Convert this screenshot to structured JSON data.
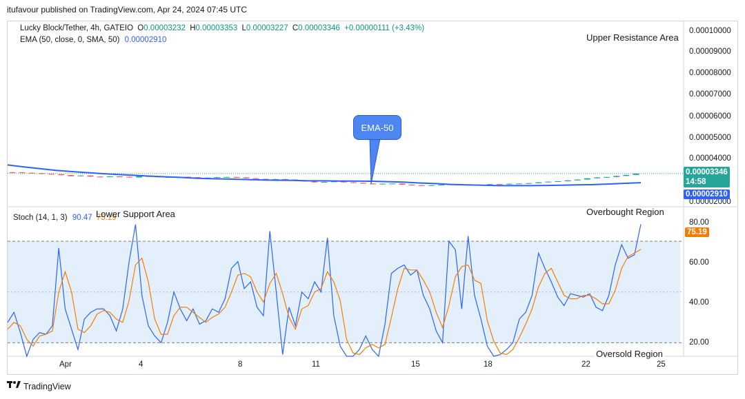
{
  "header": {
    "publisher_line": "itufavour published on TradingView.com, Apr 24, 2024 07:45 UTC"
  },
  "legend": {
    "symbol": "Lucky Block/Tether, 4h, GATEIO",
    "o_label": "O",
    "o_value": "0.00003232",
    "h_label": "H",
    "h_value": "0.00003353",
    "l_label": "L",
    "l_value": "0.00003227",
    "c_label": "C",
    "c_value": "0.00003346",
    "change": "+0.00000111 (+3.43%)",
    "ema_label": "EMA (50, close, 0, SMA, 50)",
    "ema_value": "0.00002910",
    "stoch_label": "Stoch (14, 1, 3)",
    "stoch_k": "90.47",
    "stoch_d": "75.19"
  },
  "annotations": {
    "upper_resistance": "Upper Resistance Area",
    "lower_support": "Lower Support Area",
    "ema_callout": "EMA-50",
    "overbought": "Overbought Region",
    "oversold": "Oversold Region"
  },
  "price_axis": {
    "ticks": [
      "0.00010000",
      "0.00009000",
      "0.00008000",
      "0.00007000",
      "0.00006000",
      "0.00005000",
      "0.00004000",
      "0.00002000"
    ],
    "last_price": "0.00003346",
    "countdown": "14:58",
    "ema_tag": "0.00002910"
  },
  "stoch_axis": {
    "ticks": [
      "80.00",
      "60.00",
      "40.00",
      "20.00"
    ],
    "d_tag": "75.19"
  },
  "time_axis": {
    "labels": [
      "Apr",
      "4",
      "8",
      "11",
      "15",
      "18",
      "22",
      "25"
    ]
  },
  "footer": {
    "brand": "TradingView"
  },
  "colors": {
    "up": "#26a69a",
    "down": "#ef5350",
    "ema": "#2962ff",
    "stoch_k": "#2962ff",
    "stoch_d": "#f57c00",
    "stoch_band": "#e3effb",
    "last_price": "#26a69a",
    "ema_tag": "#2962ff"
  },
  "chart_data": [
    {
      "type": "candlestick",
      "title": "Lucky Block/Tether, 4h, GATEIO",
      "ylim": [
        2e-05,
        0.000101
      ],
      "x_labels": [
        "Apr",
        "4",
        "8",
        "11",
        "15",
        "18",
        "22",
        "25"
      ],
      "ohlc_last": {
        "open": 3.232e-05,
        "high": 3.353e-05,
        "low": 3.227e-05,
        "close": 3.346e-05
      },
      "close_series": [
        3.4e-05,
        3.38e-05,
        3.36e-05,
        3.33e-05,
        3.31e-05,
        3.27e-05,
        3.22e-05,
        3.25e-05,
        3.2e-05,
        3.18e-05,
        3.21e-05,
        3.19e-05,
        3.16e-05,
        3.22e-05,
        3.2e-05,
        3.18e-05,
        3.16e-05,
        3.19e-05,
        3.17e-05,
        3.13e-05,
        3.15e-05,
        3.17e-05,
        3.18e-05,
        3.16e-05,
        3.12e-05,
        3.09e-05,
        3.06e-05,
        3.08e-05,
        3.06e-05,
        3.02e-05,
        2.97e-05,
        2.93e-05,
        2.95e-05,
        2.97e-05,
        2.93e-05,
        2.9e-05,
        2.87e-05,
        2.84e-05,
        2.86e-05,
        2.87e-05,
        2.82e-05,
        2.79e-05,
        2.77e-05,
        2.79e-05,
        2.81e-05,
        2.83e-05,
        2.81e-05,
        2.8e-05,
        2.82e-05,
        2.84e-05,
        2.83e-05,
        2.86e-05,
        2.87e-05,
        2.89e-05,
        2.93e-05,
        2.96e-05,
        2.98e-05,
        3.02e-05,
        3.06e-05,
        3.12e-05,
        3.16e-05,
        3.18e-05,
        3.23e-05,
        3.28e-05,
        3.34e-05
      ],
      "ema_series": [
        3.75e-05,
        3.66e-05,
        3.58e-05,
        3.5e-05,
        3.44e-05,
        3.39e-05,
        3.34e-05,
        3.3e-05,
        3.26e-05,
        3.22e-05,
        3.19e-05,
        3.16e-05,
        3.12e-05,
        3.1e-05,
        3.08e-05,
        3.06e-05,
        3.04e-05,
        3.03e-05,
        3.02e-05,
        3e-05,
        3e-05,
        2.99e-05,
        2.99e-05,
        2.98e-05,
        2.96e-05,
        2.94e-05,
        2.9e-05,
        2.87e-05,
        2.83e-05,
        2.81e-05,
        2.79e-05,
        2.77e-05,
        2.77e-05,
        2.77e-05,
        2.78e-05,
        2.79e-05,
        2.81e-05,
        2.82e-05,
        2.85e-05,
        2.88e-05,
        2.91e-05
      ],
      "ema_value": 2.91e-05,
      "last_price": 3.346e-05
    },
    {
      "type": "line",
      "title": "Stoch (14, 1, 3)",
      "ylim": [
        12,
        100
      ],
      "series": [
        {
          "name": "%K",
          "values": [
            32,
            38,
            26,
            12,
            22,
            26,
            25,
            30,
            76,
            40,
            28,
            16,
            34,
            38,
            40,
            40,
            36,
            27,
            40,
            68,
            90,
            48,
            30,
            24,
            20,
            32,
            50,
            40,
            33,
            40,
            31,
            33,
            40,
            38,
            46,
            64,
            68,
            52,
            56,
            41,
            36,
            86,
            50,
            13,
            41,
            30,
            50,
            46,
            56,
            50,
            82,
            36,
            18,
            12,
            12,
            16,
            24,
            16,
            11,
            31,
            61,
            64,
            66,
            60,
            63,
            48,
            40,
            27,
            20,
            80,
            75,
            40,
            83,
            48,
            34,
            18,
            11,
            13,
            16,
            20,
            34,
            38,
            48,
            73,
            64,
            56,
            47,
            42,
            49,
            48,
            47,
            49,
            41,
            39,
            48,
            66,
            78,
            70,
            72,
            90
          ]
        },
        {
          "name": "%D",
          "values": [
            28,
            32,
            30,
            22,
            18,
            24,
            25,
            27,
            50,
            62,
            50,
            28,
            26,
            30,
            37,
            39,
            38,
            34,
            32,
            45,
            66,
            70,
            56,
            34,
            25,
            25,
            36,
            41,
            41,
            38,
            35,
            32,
            35,
            37,
            41,
            50,
            60,
            61,
            59,
            50,
            44,
            55,
            61,
            49,
            35,
            28,
            40,
            42,
            50,
            52,
            62,
            56,
            45,
            22,
            14,
            13,
            17,
            19,
            17,
            19,
            35,
            52,
            64,
            63,
            63,
            57,
            50,
            38,
            29,
            42,
            59,
            65,
            66,
            57,
            55,
            33,
            21,
            14,
            13,
            16,
            23,
            31,
            40,
            53,
            61,
            64,
            56,
            48,
            46,
            46,
            48,
            48,
            46,
            43,
            43,
            51,
            64,
            71,
            73,
            75.19
          ]
        }
      ],
      "overbought": 80,
      "oversold": 20,
      "k_last": 90.47,
      "d_last": 75.19
    }
  ]
}
